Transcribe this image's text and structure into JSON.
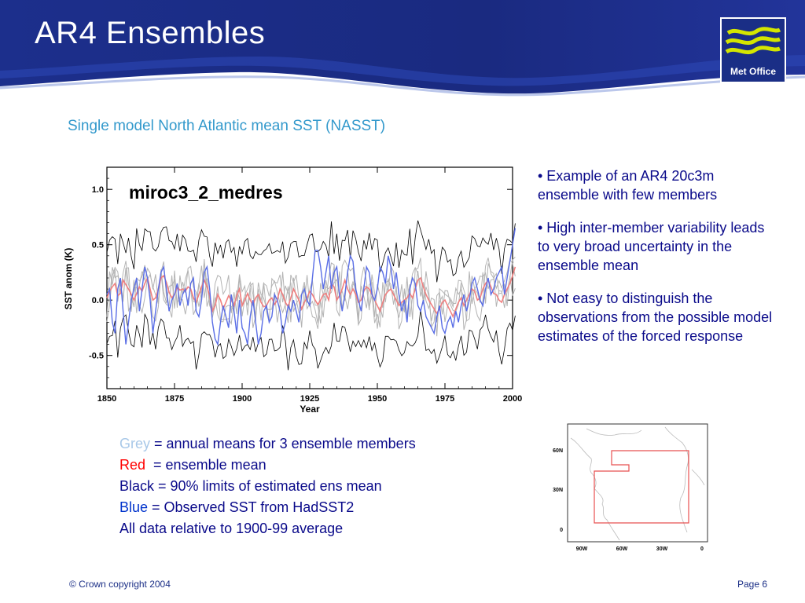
{
  "slide": {
    "title": "AR4 Ensembles",
    "subtitle": "Single model North Atlantic mean SST (NASST)",
    "logo_text": "Met Office"
  },
  "bullets": [
    "• Example of an AR4 20c3m ensemble with few members",
    "• High inter-member variability leads to very broad uncertainty in the ensemble mean",
    "• Not easy to distinguish the observations from the possible model estimates of the forced response"
  ],
  "legend": {
    "grey_word": "Grey",
    "grey_rest": " = annual means for 3 ensemble members",
    "red_word": "Red",
    "red_rest": "  = ensemble mean",
    "black_line": "Black = 90% limits of estimated ens mean",
    "blue_word": "Blue",
    "blue_rest": " = Observed SST from HadSST2",
    "relative_line": "All data relative to 1900-99 average"
  },
  "chart_data": {
    "type": "line",
    "title": "miroc3_2_medres",
    "xlabel": "Year",
    "ylabel": "SST anom (K)",
    "xlim": [
      1850,
      2000
    ],
    "ylim": [
      -0.8,
      1.2
    ],
    "xticks": [
      "1850",
      "1875",
      "1900",
      "1925",
      "1950",
      "1975",
      "2000"
    ],
    "yticks": [
      "1.0",
      "0.5",
      "0.0",
      "-0.5"
    ],
    "colors": {
      "grey": "#b4b4b4",
      "red": "#f08080",
      "black": "#000000",
      "blue": "#5a6ee6"
    },
    "series_shape": {
      "ens_mean": [
        0.02,
        0.08,
        0.12,
        0.15,
        0.04,
        0.06,
        0.18,
        0.14,
        0.1,
        0.05,
        0.0,
        0.06,
        0.12,
        0.08,
        0.15,
        0.2,
        0.1,
        0.0,
        0.02,
        0.1,
        0.2,
        0.22,
        0.16,
        0.07,
        0.02,
        0.05,
        0.12,
        0.09,
        0.1,
        0.08,
        0.12,
        0.1,
        0.02,
        -0.02,
        0.05,
        0.12,
        0.18,
        0.12,
        0.04,
        -0.1,
        -0.05,
        0.05,
        0.0,
        -0.08,
        -0.02,
        0.04,
        0.0,
        -0.05,
        0.04,
        0.1,
        -0.05,
        0.0,
        0.06,
        0.0,
        -0.04,
        0.02,
        0.05,
        -0.02,
        -0.06,
        -0.05,
        0.0,
        0.02,
        -0.04,
        0.0,
        0.1,
        0.05,
        -0.02,
        -0.06,
        0.02,
        0.1,
        0.05,
        0.0,
        -0.08,
        -0.02,
        0.02,
        0.08,
        0.05,
        0.0,
        -0.04,
        0.0,
        0.05,
        0.06,
        0.0,
        0.15,
        0.12,
        0.0,
        0.04,
        0.1,
        0.18,
        0.1,
        0.05,
        0.1,
        0.05,
        -0.02,
        0.0,
        0.08,
        0.12,
        0.1,
        0.05,
        0.0,
        -0.05,
        -0.1,
        -0.02,
        0.05,
        0.08,
        0.1,
        0.05,
        0.0,
        -0.05,
        -0.02,
        0.0,
        0.02,
        0.06,
        0.02,
        0.1,
        0.18,
        0.2,
        0.12,
        0.05,
        0.0,
        -0.04,
        -0.08,
        -0.12,
        -0.08,
        -0.02,
        0.0,
        -0.05,
        -0.1,
        -0.15,
        -0.08,
        -0.02,
        0.02,
        -0.05,
        0.0,
        0.05,
        0.1,
        0.08,
        0.0,
        0.02,
        0.1,
        0.15,
        0.18,
        0.12,
        0.06,
        0.05,
        0.0,
        -0.02,
        0.05,
        0.1,
        0.15,
        0.22,
        0.3
      ],
      "obs": [
        0.05,
        0.1,
        -0.2,
        -0.3,
        0.1,
        0.2,
        -0.1,
        -0.4,
        -0.2,
        0.0,
        0.1,
        0.2,
        -0.1,
        0.1,
        0.3,
        0.2,
        0.0,
        -0.3,
        -0.1,
        0.1,
        0.25,
        0.3,
        0.1,
        -0.1,
        0.0,
        0.05,
        0.15,
        -0.05,
        0.05,
        0.1,
        -0.05,
        0.15,
        0.2,
        -0.1,
        -0.15,
        0.0,
        0.25,
        0.3,
        0.1,
        -0.2,
        -0.35,
        -0.4,
        -0.2,
        -0.05,
        -0.15,
        -0.25,
        0.05,
        -0.1,
        -0.3,
        0.0,
        -0.25,
        -0.3,
        -0.4,
        -0.15,
        0.0,
        -0.2,
        -0.4,
        -0.3,
        -0.1,
        -0.05,
        -0.2,
        -0.15,
        0.05,
        0.0,
        -0.1,
        -0.3,
        -0.2,
        -0.05,
        -0.1,
        0.0,
        -0.1,
        -0.2,
        0.05,
        0.1,
        0.0,
        -0.05,
        0.2,
        0.45,
        0.45,
        0.3,
        0.1,
        0.25,
        0.4,
        0.1,
        0.25,
        0.3,
        0.05,
        -0.1,
        0.05,
        0.25,
        0.4,
        0.35,
        0.1,
        0.0,
        -0.1,
        0.1,
        0.3,
        0.25,
        0.05,
        0.0,
        0.1,
        0.3,
        0.25,
        0.15,
        0.4,
        0.3,
        0.1,
        0.25,
        0.05,
        -0.1,
        0.0,
        -0.2,
        0.1,
        0.2,
        0.15,
        -0.05,
        -0.1,
        0.0,
        -0.15,
        -0.2,
        -0.25,
        -0.3,
        -0.15,
        -0.05,
        -0.25,
        -0.3,
        -0.2,
        -0.15,
        -0.25,
        -0.1,
        -0.2,
        -0.05,
        0.05,
        -0.1,
        0.0,
        0.15,
        0.2,
        0.1,
        0.0,
        -0.05,
        0.1,
        0.2,
        0.05,
        0.1,
        0.2,
        0.25,
        0.3,
        0.05,
        0.2,
        0.35,
        0.5,
        0.65,
        0.55
      ]
    }
  },
  "map": {
    "lat_labels": [
      "60N",
      "30N",
      "0"
    ],
    "lon_labels": [
      "90W",
      "60W",
      "30W",
      "0"
    ]
  },
  "footer": {
    "copyright": "© Crown copyright 2004",
    "page": "Page 6"
  }
}
